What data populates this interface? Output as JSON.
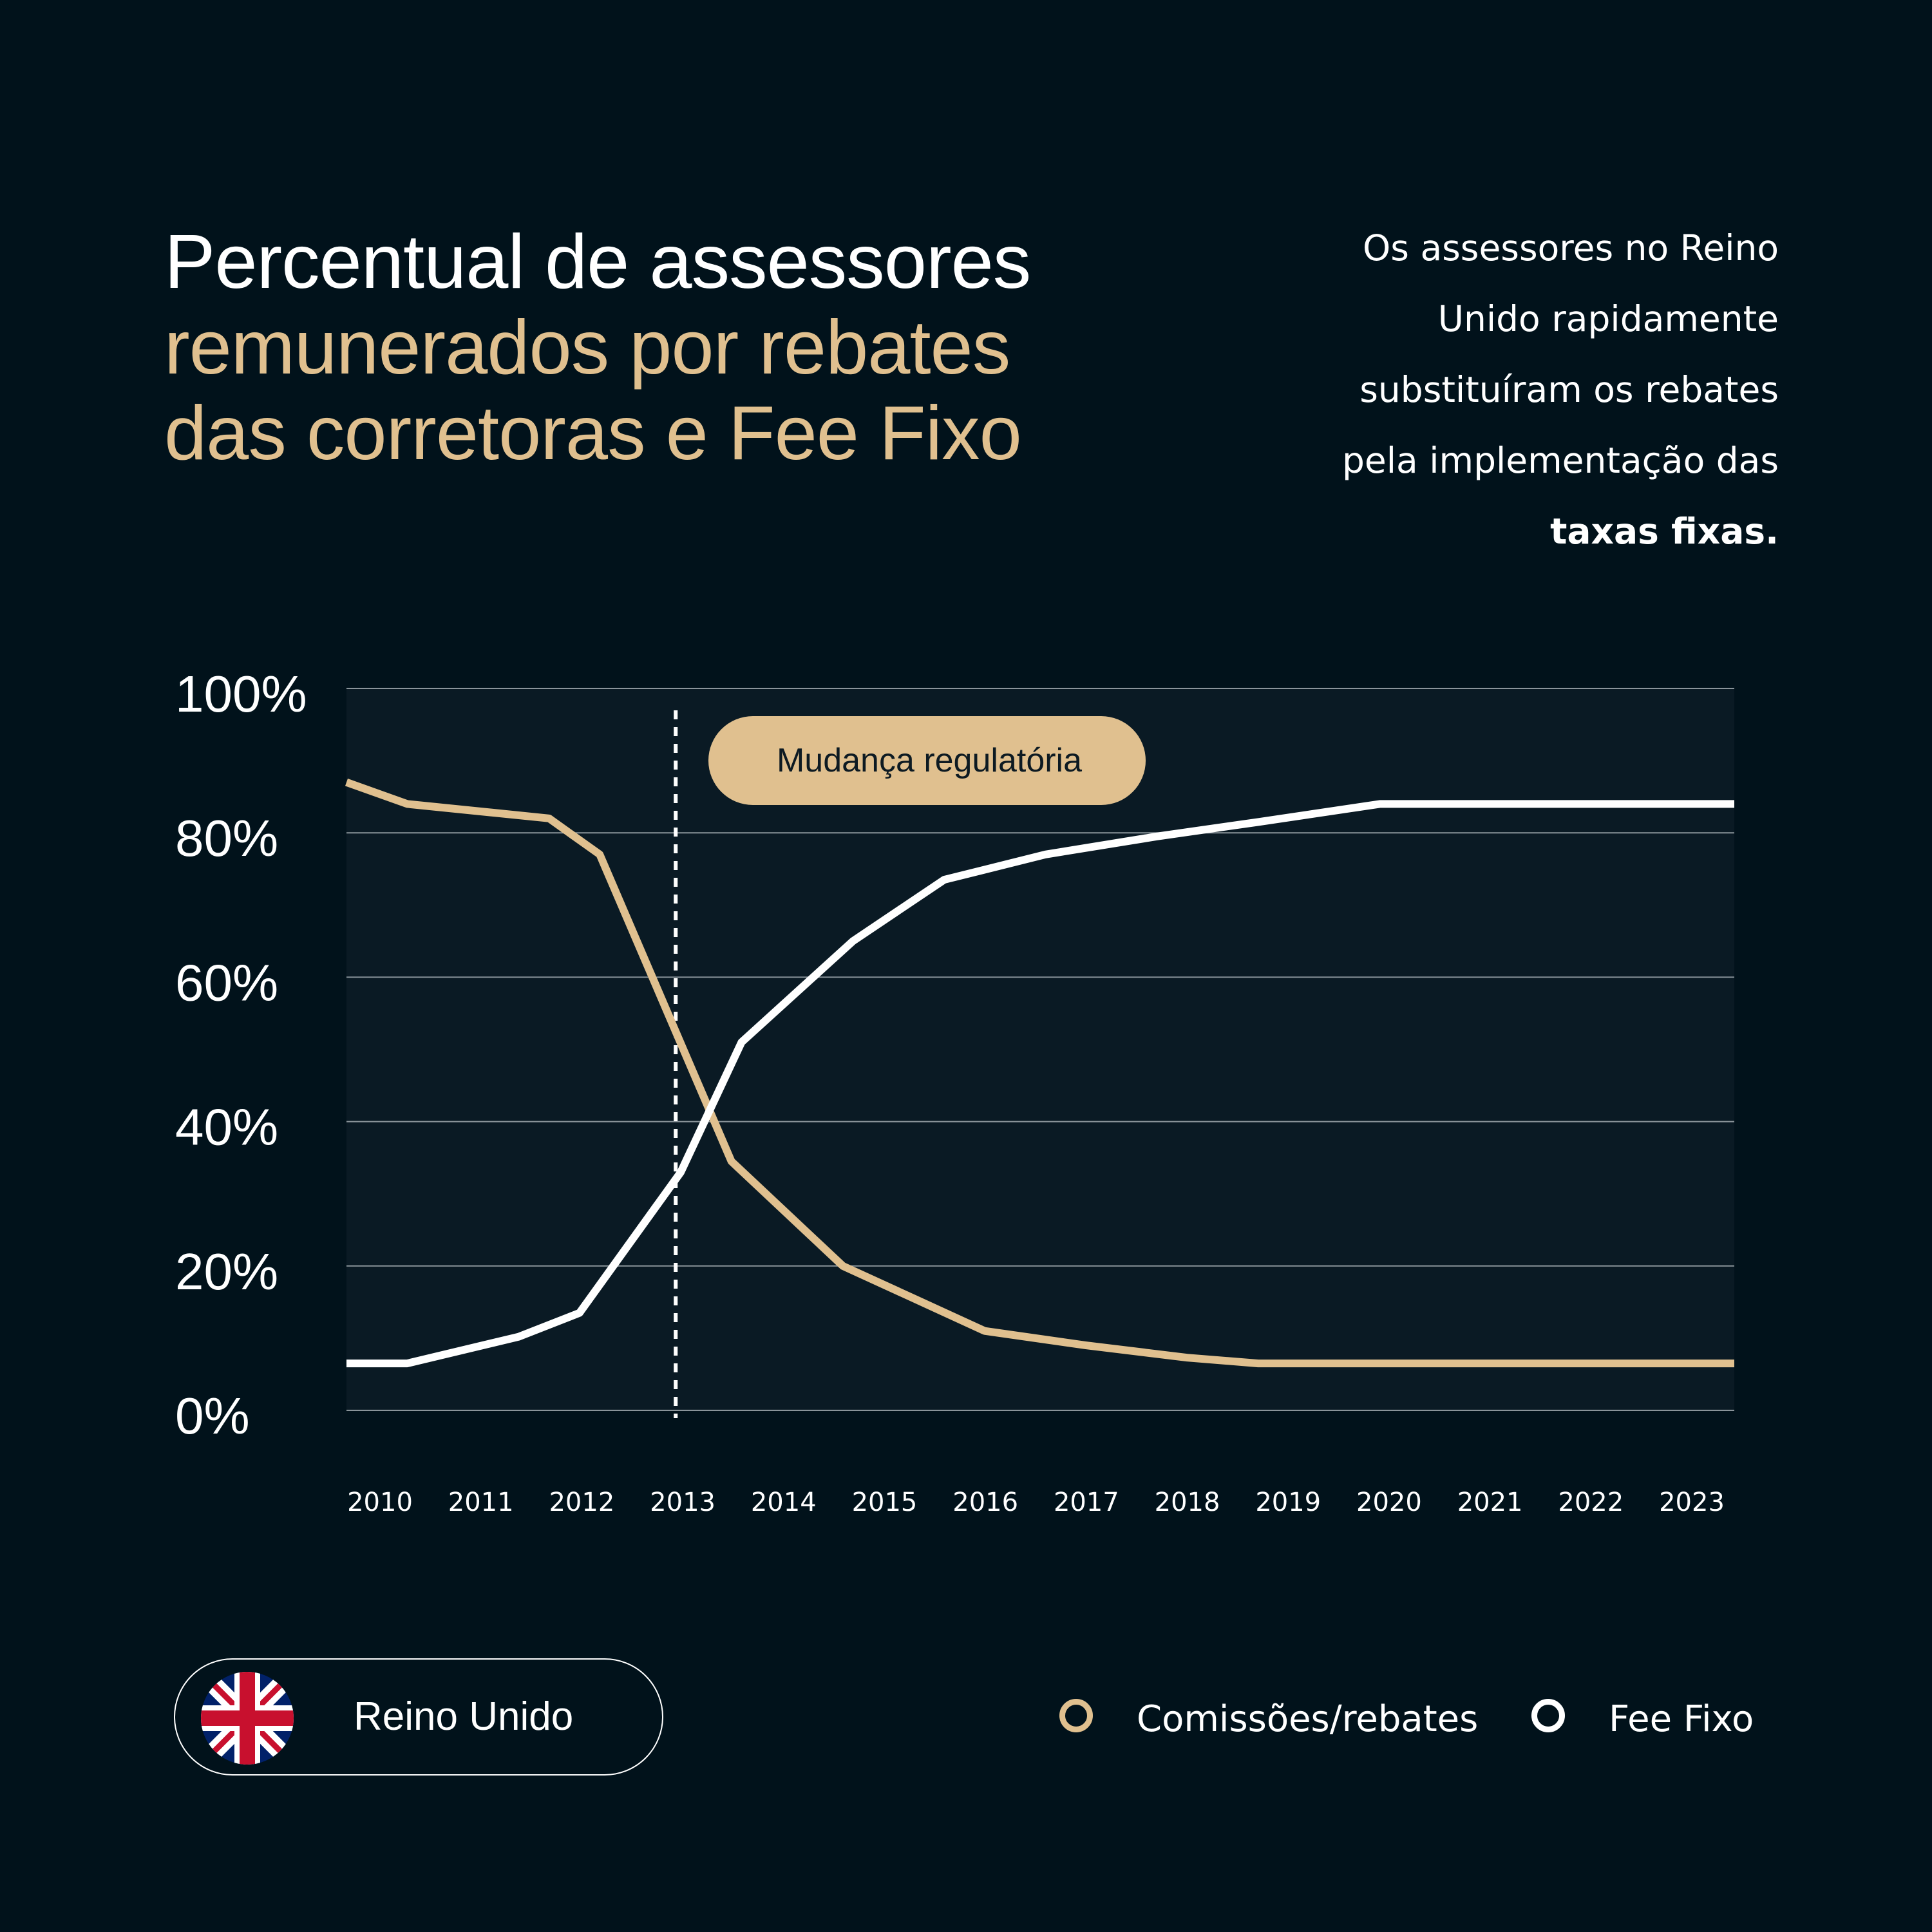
{
  "title": {
    "line1": "Percentual de assessores",
    "line2": "remunerados por rebates",
    "line3": "das corretoras e Fee Fixo"
  },
  "note": {
    "lines": [
      "Os assessores no Reino",
      "Unido rapidamente",
      "substituíram os rebates",
      "pela implementação das"
    ],
    "bold": "taxas fixas."
  },
  "colors": {
    "background": "#01121b",
    "plot_background": "#0a1a24",
    "gold": "#e0c08f",
    "white": "#ffffff"
  },
  "chart_data": {
    "type": "line",
    "y_ticks": [
      "100%",
      "80%",
      "60%",
      "40%",
      "20%",
      "0%"
    ],
    "ylim": [
      0,
      100
    ],
    "x_ticks": [
      "2010",
      "2011",
      "2012",
      "2013",
      "2014",
      "2015",
      "2016",
      "2017",
      "2018",
      "2019",
      "2020",
      "2021",
      "2022",
      "2023"
    ],
    "xlim": [
      2009.7,
      2023.4
    ],
    "grid": true,
    "annotation": {
      "label": "Mudança regulatória",
      "x": 2012.95
    },
    "series": [
      {
        "name": "Comissões/rebates",
        "color": "#e0c08f",
        "points": [
          [
            2009.7,
            87
          ],
          [
            2010.3,
            84
          ],
          [
            2011.7,
            82
          ],
          [
            2012.2,
            77
          ],
          [
            2013.5,
            34.5
          ],
          [
            2014.6,
            20
          ],
          [
            2015.3,
            15.5
          ],
          [
            2016.0,
            11
          ],
          [
            2017.0,
            9
          ],
          [
            2018.0,
            7.3
          ],
          [
            2018.7,
            6.5
          ],
          [
            2023.4,
            6.5
          ]
        ]
      },
      {
        "name": "Fee Fixo",
        "color": "#ffffff",
        "points": [
          [
            2009.7,
            6.5
          ],
          [
            2010.3,
            6.5
          ],
          [
            2011.4,
            10.2
          ],
          [
            2012.0,
            13.5
          ],
          [
            2013.0,
            33
          ],
          [
            2013.6,
            51
          ],
          [
            2014.7,
            65
          ],
          [
            2015.6,
            73.5
          ],
          [
            2016.6,
            77
          ],
          [
            2017.7,
            79.5
          ],
          [
            2018.7,
            81.5
          ],
          [
            2019.9,
            84
          ],
          [
            2023.4,
            84
          ]
        ]
      }
    ]
  },
  "badge": {
    "label": "Reino Unido",
    "flag_icon": "uk-flag-icon"
  },
  "legend": [
    {
      "label": "Comissões/rebates",
      "color": "#e0c08f"
    },
    {
      "label": "Fee Fixo",
      "color": "#ffffff"
    }
  ]
}
